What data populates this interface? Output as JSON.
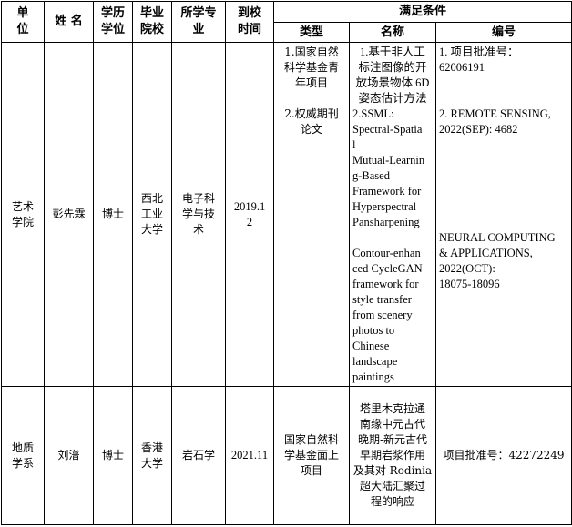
{
  "headers": {
    "unit": "单\n位",
    "name": "姓  名",
    "degree": "学历\n学位",
    "school": "毕业\n院校",
    "major": "所学专\n业",
    "arrival": "到校\n时间",
    "conditions": "满足条件",
    "type": "类型",
    "title": "名称",
    "number": "编号"
  },
  "rows": [
    {
      "unit": "艺术\n学院",
      "name": "彭先霖",
      "degree": "博士",
      "school": "西北\n工业\n大学",
      "major": "电子科\n学与技\n术",
      "arrival": "2019.1\n2",
      "type": "1.国家自然\n科学基金青\n年项目\n\n2.权威期刊\n论文",
      "title_1": "1.基于非人工\n标注图像的开\n放场景物体 6D\n姿态估计方法",
      "title_2": "2.SSML:\nSpectral-Spatia\nl\nMutual-Learnin\ng-Based\nFramework for\nHyperspectral\nPansharpening",
      "title_3": "Contour-enhan\nced CycleGAN\nframework for\nstyle transfer\nfrom scenery\nphotos to\nChinese\nlandscape\npaintings",
      "number_1": "1. 项目批准号：\n62006191",
      "number_2": "2.  REMOTE SENSING,\n2022(SEP): 4682",
      "number_3": "NEURAL COMPUTING\n& APPLICATIONS,\n2022(OCT):\n18075-18096"
    },
    {
      "unit": "地质\n学系",
      "name": "刘潽",
      "degree": "博士",
      "school": "香港\n大学",
      "major": "岩石学",
      "arrival": "2021.11",
      "type": "国家自然科\n学基金面上\n项目",
      "title": "塔里木克拉通\n南缘中元古代\n晚期-新元古代\n早期岩浆作用\n及其对 Rodinia\n超大陆汇聚过\n程的响应",
      "number": "项目批准号：42272249"
    }
  ]
}
